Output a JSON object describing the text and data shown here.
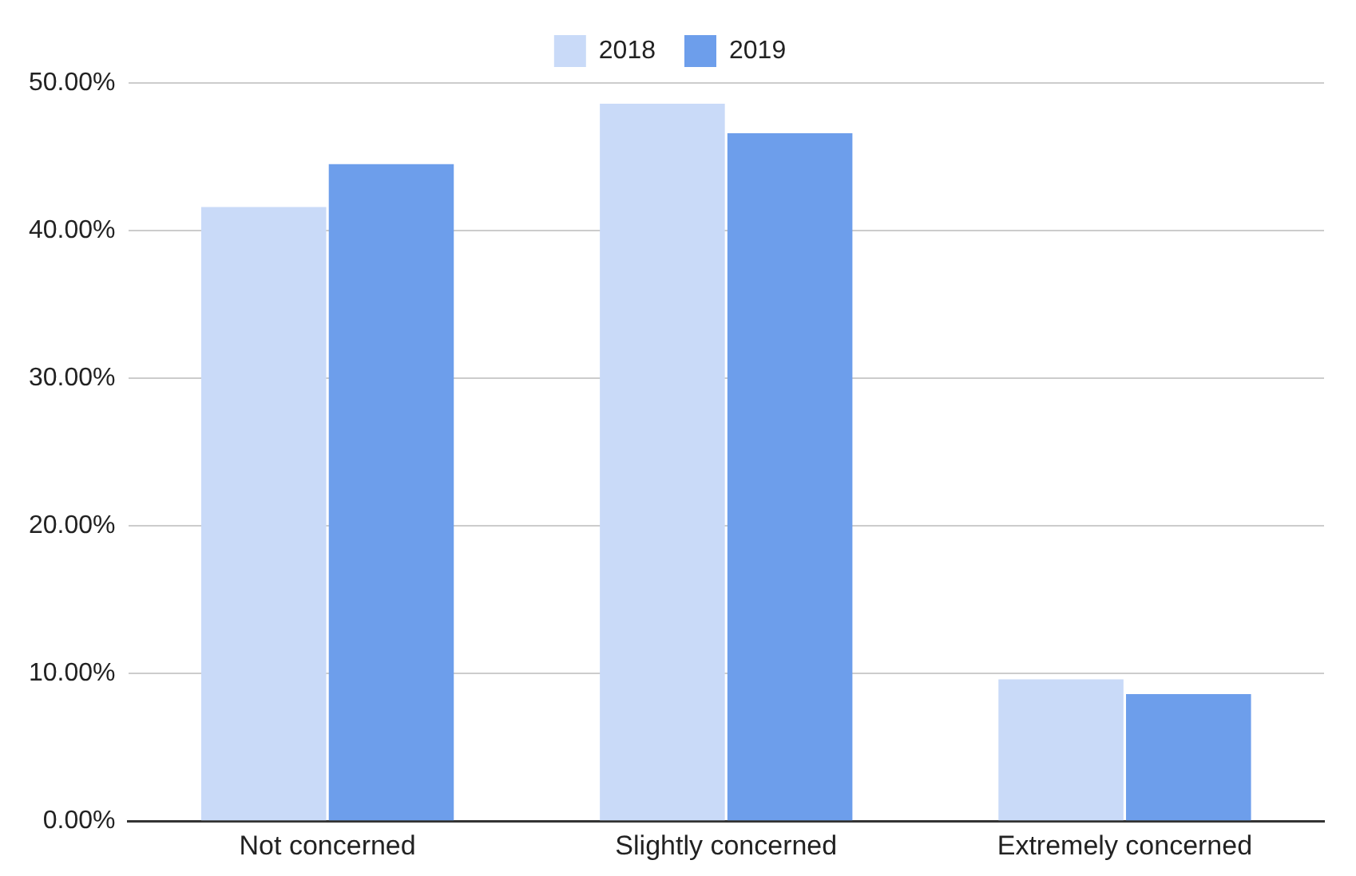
{
  "chart_data": {
    "type": "bar",
    "categories": [
      "Not concerned",
      "Slightly concerned",
      "Extremely concerned"
    ],
    "series": [
      {
        "name": "2018",
        "color": "#c9daf8",
        "values": [
          41.6,
          48.6,
          9.6
        ]
      },
      {
        "name": "2019",
        "color": "#6d9eeb",
        "values": [
          44.5,
          46.6,
          8.6
        ]
      }
    ],
    "ylim": [
      0,
      50
    ],
    "yticks": [
      {
        "value": 0,
        "label": "0.00%"
      },
      {
        "value": 10,
        "label": "10.00%"
      },
      {
        "value": 20,
        "label": "20.00%"
      },
      {
        "value": 30,
        "label": "30.00%"
      },
      {
        "value": 40,
        "label": "40.00%"
      },
      {
        "value": 50,
        "label": "50.00%"
      }
    ],
    "grid": "y",
    "legend": "top"
  }
}
